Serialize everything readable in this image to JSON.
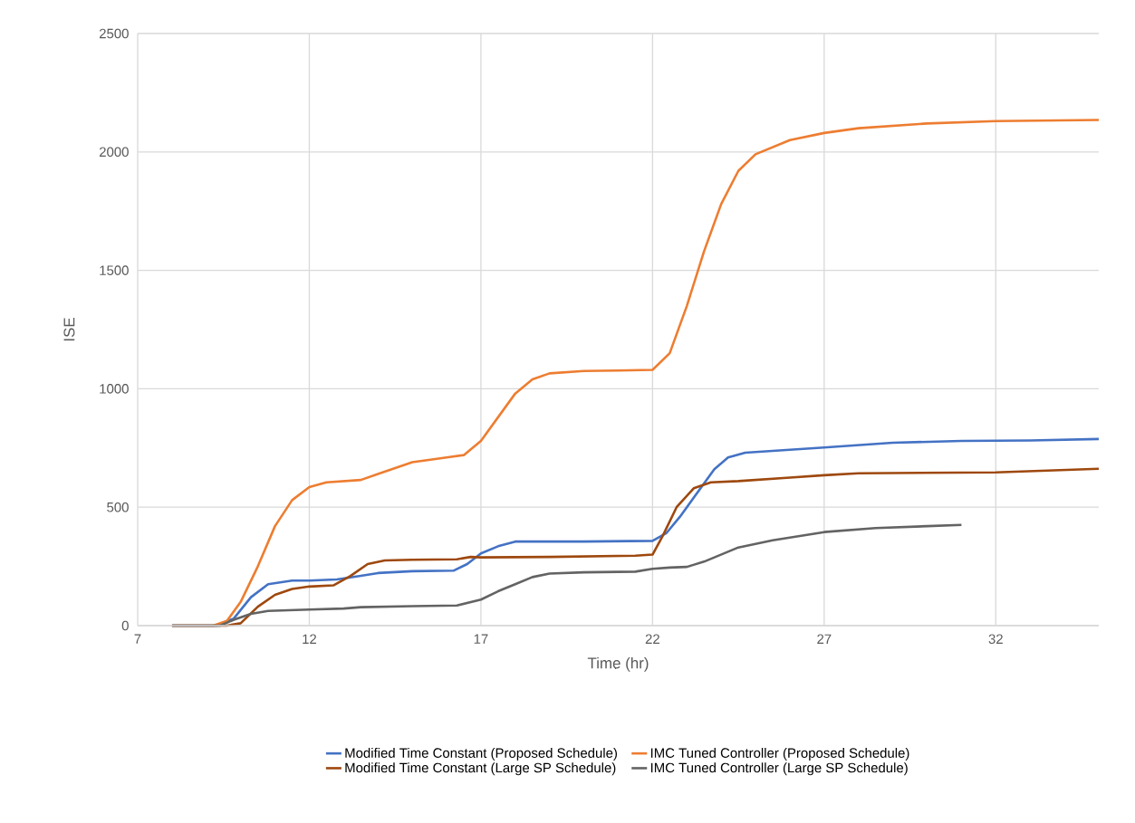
{
  "chart_data": {
    "type": "line",
    "xlabel": "Time (hr)",
    "ylabel": "ISE",
    "xlim": [
      7,
      35
    ],
    "xticks": [
      7,
      12,
      17,
      22,
      27,
      32
    ],
    "ylim": [
      0,
      2500
    ],
    "yticks": [
      0,
      500,
      1000,
      1500,
      2000,
      2500
    ],
    "grid": true,
    "legend": "bottom",
    "marker": "none",
    "line_style": "solid",
    "series": [
      {
        "name": "Modified Time Constant (Proposed Schedule)",
        "color": "#4472c4",
        "x": [
          8,
          9.3,
          9.8,
          10.3,
          10.8,
          11.5,
          12,
          12.8,
          13.5,
          14,
          15,
          16.2,
          16.6,
          17,
          17.5,
          18,
          20,
          22,
          22.4,
          22.8,
          23.3,
          23.8,
          24.2,
          24.7,
          25.5,
          27,
          29,
          31,
          33,
          35
        ],
        "values": [
          0,
          0,
          30,
          120,
          175,
          190,
          190,
          195,
          210,
          222,
          230,
          232,
          260,
          305,
          335,
          355,
          355,
          358,
          390,
          460,
          560,
          660,
          710,
          730,
          738,
          752,
          772,
          780,
          782,
          788
        ]
      },
      {
        "name": "IMC Tuned Controller (Proposed Schedule)",
        "color": "#ed7d31",
        "x": [
          8,
          9.2,
          9.6,
          10,
          10.5,
          11,
          11.5,
          12,
          12.5,
          13,
          13.5,
          14,
          15,
          16,
          16.5,
          17,
          17.5,
          18,
          18.5,
          19,
          20,
          21,
          22,
          22.5,
          23,
          23.5,
          24,
          24.5,
          25,
          26,
          27,
          28,
          30,
          32,
          35
        ],
        "values": [
          0,
          0,
          20,
          100,
          250,
          420,
          530,
          585,
          605,
          610,
          615,
          640,
          690,
          710,
          720,
          780,
          880,
          980,
          1040,
          1065,
          1075,
          1077,
          1080,
          1150,
          1350,
          1580,
          1780,
          1920,
          1990,
          2050,
          2080,
          2100,
          2120,
          2130,
          2135
        ]
      },
      {
        "name": "Modified Time Constant (Large SP Schedule)",
        "color": "#9e480e",
        "x": [
          8,
          9.6,
          10,
          10.5,
          11,
          11.5,
          12,
          12.7,
          13.2,
          13.7,
          14.2,
          15,
          16.3,
          16.7,
          17,
          19,
          21.5,
          22,
          22.3,
          22.7,
          23.2,
          23.7,
          24.5,
          26,
          27,
          28,
          30,
          32,
          35
        ],
        "values": [
          0,
          0,
          10,
          80,
          130,
          155,
          165,
          170,
          210,
          260,
          275,
          278,
          280,
          290,
          288,
          290,
          295,
          300,
          380,
          500,
          580,
          605,
          610,
          625,
          635,
          643,
          645,
          647,
          662
        ]
      },
      {
        "name": "IMC Tuned Controller (Large SP Schedule)",
        "color": "#636363",
        "x": [
          8,
          9.4,
          9.8,
          10.3,
          10.8,
          12,
          13,
          13.5,
          15,
          16.3,
          17,
          17.5,
          18,
          18.5,
          19,
          20,
          21.5,
          22,
          22.5,
          23,
          23.5,
          24,
          24.5,
          25.5,
          27,
          28.5,
          30,
          31
        ],
        "values": [
          0,
          0,
          25,
          50,
          62,
          68,
          72,
          78,
          82,
          85,
          110,
          145,
          175,
          205,
          220,
          225,
          228,
          240,
          245,
          248,
          270,
          300,
          330,
          360,
          395,
          412,
          420,
          425
        ]
      }
    ]
  }
}
